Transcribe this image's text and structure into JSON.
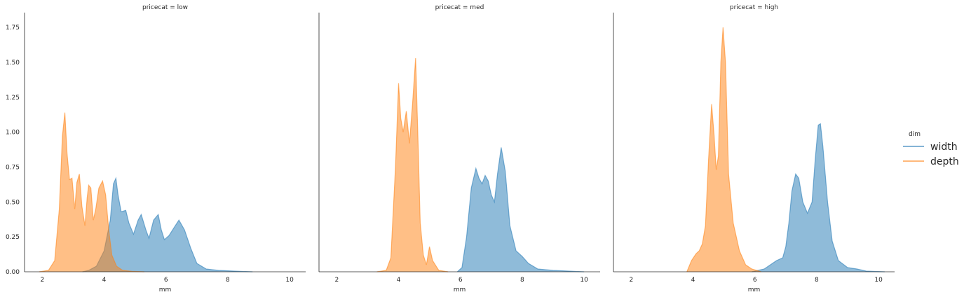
{
  "chart_data": {
    "type": "area",
    "kind": "kde",
    "facet_variable": "pricecat",
    "legend": {
      "title": "dim",
      "placement": "right",
      "entries": [
        {
          "label": "width",
          "color": "#1f77b4"
        },
        {
          "label": "depth",
          "color": "#ff7f0e"
        }
      ]
    },
    "xticks": [
      "2",
      "4",
      "6",
      "8",
      "10"
    ],
    "yticks": [
      "0.00",
      "0.25",
      "0.50",
      "0.75",
      "1.00",
      "1.25",
      "1.50",
      "1.75"
    ],
    "xlim": [
      1.6,
      10.6
    ],
    "ylim": [
      0,
      1.85
    ],
    "shared_y": true,
    "grid": false,
    "fill_alpha": 0.5,
    "panels": [
      {
        "title": "pricecat = low",
        "xlabel": "mm",
        "series": [
          {
            "name": "width",
            "x": [
              3.3,
              3.5,
              3.75,
              4.0,
              4.2,
              4.3,
              4.38,
              4.45,
              4.55,
              4.7,
              4.8,
              4.95,
              5.1,
              5.2,
              5.35,
              5.45,
              5.6,
              5.75,
              5.85,
              5.95,
              6.1,
              6.3,
              6.42,
              6.6,
              6.8,
              7.0,
              7.3,
              7.7,
              8.2,
              8.8
            ],
            "y": [
              0.0,
              0.01,
              0.04,
              0.15,
              0.37,
              0.63,
              0.67,
              0.55,
              0.43,
              0.44,
              0.35,
              0.27,
              0.37,
              0.41,
              0.3,
              0.24,
              0.37,
              0.41,
              0.3,
              0.23,
              0.26,
              0.33,
              0.37,
              0.3,
              0.17,
              0.06,
              0.02,
              0.01,
              0.005,
              0.0
            ]
          },
          {
            "name": "depth",
            "x": [
              1.9,
              2.2,
              2.4,
              2.55,
              2.65,
              2.73,
              2.8,
              2.88,
              2.96,
              3.05,
              3.12,
              3.2,
              3.28,
              3.38,
              3.45,
              3.5,
              3.57,
              3.65,
              3.73,
              3.83,
              3.95,
              4.05,
              4.15,
              4.25,
              4.4,
              4.6,
              4.9,
              5.3
            ],
            "y": [
              0.0,
              0.01,
              0.08,
              0.45,
              0.97,
              1.14,
              0.85,
              0.66,
              0.67,
              0.45,
              0.64,
              0.7,
              0.47,
              0.33,
              0.53,
              0.62,
              0.6,
              0.37,
              0.45,
              0.6,
              0.65,
              0.55,
              0.3,
              0.12,
              0.04,
              0.01,
              0.003,
              0.0
            ]
          }
        ]
      },
      {
        "title": "pricecat = med",
        "xlabel": "mm",
        "series": [
          {
            "name": "width",
            "x": [
              5.9,
              6.05,
              6.2,
              6.35,
              6.5,
              6.6,
              6.7,
              6.8,
              6.9,
              7.0,
              7.1,
              7.2,
              7.32,
              7.45,
              7.6,
              7.8,
              8.0,
              8.2,
              8.5,
              9.0,
              9.5,
              10.0
            ],
            "y": [
              0.0,
              0.03,
              0.25,
              0.6,
              0.74,
              0.67,
              0.63,
              0.69,
              0.65,
              0.55,
              0.5,
              0.7,
              0.89,
              0.72,
              0.33,
              0.15,
              0.11,
              0.06,
              0.02,
              0.01,
              0.005,
              0.0
            ]
          },
          {
            "name": "depth",
            "x": [
              3.3,
              3.6,
              3.75,
              3.9,
              4.0,
              4.07,
              4.15,
              4.25,
              4.35,
              4.45,
              4.55,
              4.62,
              4.7,
              4.8,
              4.9,
              5.0,
              5.1,
              5.3,
              5.6
            ],
            "y": [
              0.0,
              0.01,
              0.1,
              0.75,
              1.35,
              1.1,
              1.0,
              1.15,
              0.92,
              1.2,
              1.53,
              1.0,
              0.35,
              0.12,
              0.05,
              0.18,
              0.08,
              0.01,
              0.0
            ]
          }
        ]
      },
      {
        "title": "pricecat = high",
        "xlabel": "mm",
        "series": [
          {
            "name": "width",
            "x": [
              5.9,
              6.3,
              6.7,
              6.9,
              7.0,
              7.1,
              7.2,
              7.32,
              7.42,
              7.55,
              7.7,
              7.85,
              7.95,
              8.05,
              8.12,
              8.2,
              8.35,
              8.5,
              8.7,
              9.0,
              9.3,
              9.6,
              10.2
            ],
            "y": [
              0.0,
              0.02,
              0.08,
              0.1,
              0.18,
              0.35,
              0.58,
              0.7,
              0.67,
              0.5,
              0.42,
              0.5,
              0.8,
              1.05,
              1.06,
              0.9,
              0.5,
              0.22,
              0.08,
              0.03,
              0.02,
              0.005,
              0.0
            ]
          },
          {
            "name": "depth",
            "x": [
              3.8,
              3.95,
              4.1,
              4.2,
              4.3,
              4.4,
              4.5,
              4.6,
              4.68,
              4.75,
              4.82,
              4.9,
              4.97,
              5.05,
              5.15,
              5.3,
              5.5,
              5.7,
              5.9,
              6.2
            ],
            "y": [
              0.0,
              0.08,
              0.13,
              0.15,
              0.2,
              0.33,
              0.8,
              1.2,
              0.98,
              0.73,
              0.83,
              1.5,
              1.75,
              1.5,
              0.7,
              0.35,
              0.15,
              0.05,
              0.02,
              0.0
            ]
          }
        ]
      }
    ]
  }
}
